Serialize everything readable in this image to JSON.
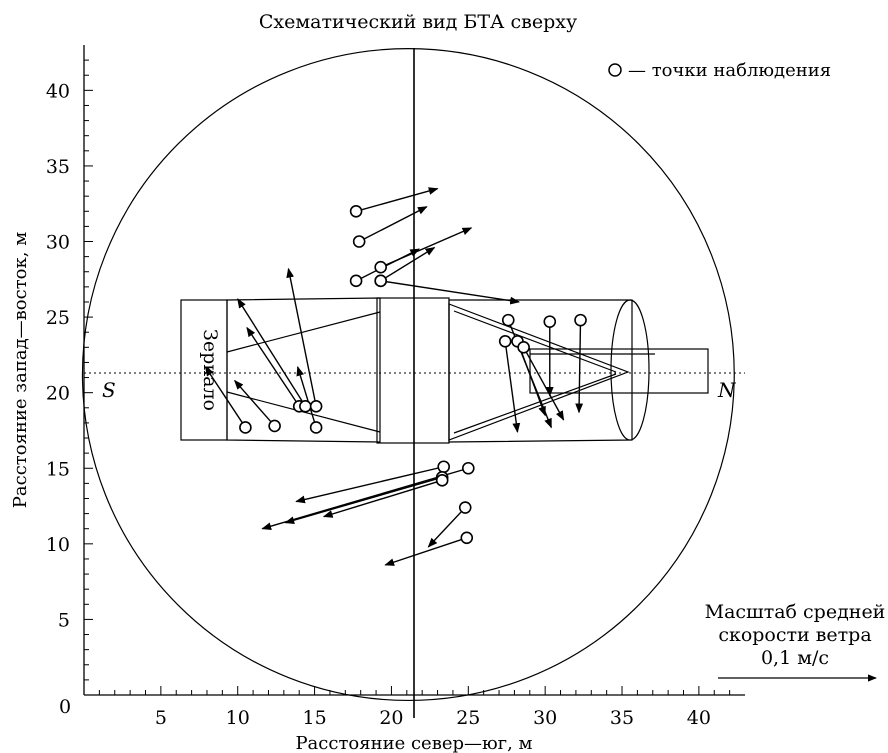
{
  "title": "Схематический вид БТА сверху",
  "axes": {
    "xlabel": "Расстояние север—юг, м",
    "ylabel": "Расстояние запад—восток, м",
    "xlim": [
      0,
      43
    ],
    "ylim": [
      0,
      43
    ],
    "x_ticks": [
      "0",
      "5",
      "10",
      "15",
      "20",
      "25",
      "30",
      "35",
      "40"
    ],
    "y_ticks": [
      "5",
      "10",
      "15",
      "20",
      "25",
      "30",
      "35",
      "40"
    ]
  },
  "diagram": {
    "mirror_label": "Зеркало",
    "south_label": "S",
    "north_label": "N",
    "dome_center": [
      21.1,
      21.2
    ],
    "dome_radius": 21.2
  },
  "legend": {
    "marker_text": "— точки наблюдения"
  },
  "scale": {
    "line1": "Масштаб средней",
    "line2": "скорости ветра",
    "line3": "0,1 м/с"
  },
  "chart_data": {
    "type": "vector-field",
    "series": [
      {
        "points": [
          {
            "x": 17.7,
            "y": 32.0,
            "dx": 5.3,
            "dy": 1.5
          },
          {
            "x": 17.9,
            "y": 30.0,
            "dx": 4.4,
            "dy": 2.3
          },
          {
            "x": 17.7,
            "y": 27.4,
            "dx": 4.1,
            "dy": 2.1
          },
          {
            "x": 19.3,
            "y": 28.3,
            "dx": 5.9,
            "dy": 2.6
          },
          {
            "x": 19.3,
            "y": 27.4,
            "dx": 3.5,
            "dy": 2.2
          },
          {
            "x": 19.3,
            "y": 27.4,
            "dx": 9.0,
            "dy": -1.4
          },
          {
            "x": 27.6,
            "y": 24.8,
            "dx": 2.8,
            "dy": -7.1
          },
          {
            "x": 27.4,
            "y": 23.4,
            "dx": 0.8,
            "dy": -6.0
          },
          {
            "x": 28.2,
            "y": 23.4,
            "dx": 1.8,
            "dy": -4.9
          },
          {
            "x": 28.6,
            "y": 23.0,
            "dx": 2.6,
            "dy": -4.8
          },
          {
            "x": 30.3,
            "y": 24.7,
            "dx": 0.0,
            "dy": -4.9
          },
          {
            "x": 32.3,
            "y": 24.8,
            "dx": -0.1,
            "dy": -6.1
          },
          {
            "x": 10.5,
            "y": 17.7,
            "dx": -2.6,
            "dy": 4.0
          },
          {
            "x": 12.4,
            "y": 17.8,
            "dx": -2.6,
            "dy": 3.0
          },
          {
            "x": 14.0,
            "y": 19.1,
            "dx": -3.4,
            "dy": 5.2
          },
          {
            "x": 14.4,
            "y": 19.1,
            "dx": -4.4,
            "dy": 7.1
          },
          {
            "x": 15.1,
            "y": 19.1,
            "dx": -1.8,
            "dy": 9.1
          },
          {
            "x": 15.1,
            "y": 17.7,
            "dx": -1.2,
            "dy": 4.0
          },
          {
            "x": 23.4,
            "y": 15.1,
            "dx": -9.6,
            "dy": -2.3
          },
          {
            "x": 25.0,
            "y": 15.0,
            "dx": -13.4,
            "dy": -4.0
          },
          {
            "x": 23.3,
            "y": 14.4,
            "dx": -10.2,
            "dy": -3.0
          },
          {
            "x": 23.3,
            "y": 14.2,
            "dx": -7.7,
            "dy": -2.4
          },
          {
            "x": 24.8,
            "y": 12.4,
            "dx": -2.4,
            "dy": -2.6
          },
          {
            "x": 24.9,
            "y": 10.4,
            "dx": -5.3,
            "dy": -1.8
          }
        ]
      }
    ]
  }
}
